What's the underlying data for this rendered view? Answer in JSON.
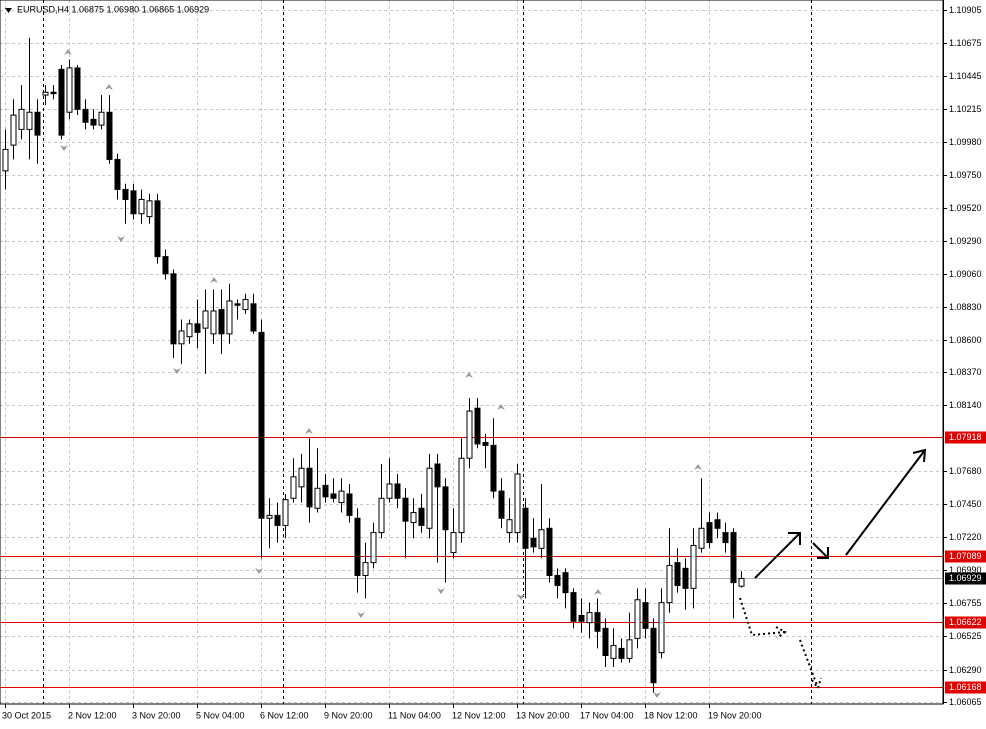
{
  "chart_data": {
    "type": "candlestick",
    "title": "EURUSD,H4  1.06875 1.06980 1.06865 1.06929",
    "categories": [
      "30 Oct 2015",
      null,
      null,
      null,
      null,
      null,
      null,
      null,
      "2 Nov 12:00",
      null,
      null,
      null,
      null,
      null,
      null,
      null,
      "3 Nov 20:00",
      null,
      null,
      null,
      null,
      null,
      null,
      null,
      "5 Nov 04:00",
      null,
      null,
      null,
      null,
      null,
      null,
      null,
      "6 Nov 12:00",
      null,
      null,
      null,
      null,
      null,
      null,
      null,
      "9 Nov 20:00",
      null,
      null,
      null,
      null,
      null,
      null,
      null,
      "11 Nov 04:00",
      null,
      null,
      null,
      null,
      null,
      null,
      null,
      "12 Nov 12:00",
      null,
      null,
      null,
      null,
      null,
      null,
      null,
      "13 Nov 20:00",
      null,
      null,
      null,
      null,
      null,
      null,
      null,
      "17 Nov 04:00",
      null,
      null,
      null,
      null,
      null,
      null,
      null,
      "18 Nov 12:00",
      null,
      null,
      null,
      null,
      null,
      null,
      null,
      "19 Nov 20:00",
      null,
      null,
      null,
      null
    ],
    "open": [
      1.0978,
      1.0996,
      1.1007,
      1.1007,
      1.1019,
      1.1031,
      1.1033,
      1.1049,
      1.1019,
      1.105,
      1.1021,
      1.1014,
      1.101,
      1.1019,
      1.0986,
      1.0965,
      1.0964,
      1.0948,
      1.0946,
      1.0957,
      1.0918,
      1.0906,
      1.0857,
      1.0862,
      1.0871,
      1.0868,
      1.0864,
      1.0881,
      1.0864,
      1.0885,
      1.0881,
      1.0885,
      1.0865,
      1.0735,
      1.0737,
      1.073,
      1.0749,
      1.0757,
      1.077,
      1.0742,
      1.0758,
      1.0752,
      1.0746,
      1.0752,
      1.0735,
      1.0695,
      1.0704,
      1.0725,
      1.0749,
      1.0759,
      1.0749,
      1.0732,
      1.0742,
      1.0728,
      1.0773,
      1.0757,
      1.0711,
      1.0725,
      1.0777,
      1.0812,
      1.0788,
      1.0786,
      1.0754,
      1.0725,
      1.0725,
      1.0742,
      1.0721,
      1.0714,
      1.0728,
      1.0695,
      1.0697,
      1.0683,
      1.0667,
      1.0662,
      1.0669,
      1.0658,
      1.0637,
      1.0644,
      1.0637,
      1.0651,
      1.0676,
      1.0658,
      1.0641,
      1.0676,
      1.0704,
      1.07,
      1.0686,
      1.0714,
      1.0732,
      1.0734,
      1.0725,
      1.0725,
      1.06875
    ],
    "high": [
      1.1007,
      1.1028,
      1.1038,
      1.1071,
      1.1028,
      1.1038,
      1.1038,
      1.1052,
      1.1056,
      1.1052,
      1.1028,
      1.1021,
      1.1031,
      1.1031,
      1.099,
      1.0969,
      1.0969,
      1.0965,
      1.0962,
      1.0962,
      1.0923,
      1.0909,
      1.0874,
      1.0874,
      1.0888,
      1.0895,
      1.0895,
      1.0895,
      1.0899,
      1.0888,
      1.0892,
      1.0892,
      1.0874,
      1.0749,
      1.0746,
      1.0752,
      1.0777,
      1.078,
      1.0791,
      1.0784,
      1.0766,
      1.0763,
      1.0763,
      1.0759,
      1.0742,
      1.0718,
      1.0732,
      1.0773,
      1.0777,
      1.0766,
      1.0756,
      1.0749,
      1.0752,
      1.078,
      1.078,
      1.0763,
      1.0742,
      1.0791,
      1.0819,
      1.0819,
      1.0794,
      1.0805,
      1.0763,
      1.0749,
      1.0773,
      1.0749,
      1.0735,
      1.0759,
      1.0735,
      1.07,
      1.07,
      1.0686,
      1.0679,
      1.0676,
      1.0679,
      1.0665,
      1.0658,
      1.0651,
      1.0669,
      1.0686,
      1.0686,
      1.0665,
      1.0686,
      1.0728,
      1.0714,
      1.0707,
      1.0728,
      1.0763,
      1.0739,
      1.0739,
      1.0732,
      1.0728,
      1.0698
    ],
    "low": [
      1.0965,
      1.0986,
      1.1,
      1.0986,
      1.0983,
      1.1024,
      1.1028,
      1.1,
      1.1014,
      1.1017,
      1.1007,
      1.1007,
      1.1007,
      1.0983,
      1.0958,
      1.0941,
      1.0944,
      1.0941,
      1.0941,
      1.0913,
      1.0902,
      1.0847,
      1.0843,
      1.0857,
      1.0854,
      1.0836,
      1.0857,
      1.085,
      1.0857,
      1.0874,
      1.0878,
      1.0864,
      1.0707,
      1.0714,
      1.0718,
      1.0721,
      1.0746,
      1.0746,
      1.0732,
      1.0739,
      1.0746,
      1.0746,
      1.0739,
      1.0732,
      1.0683,
      1.0679,
      1.07,
      1.0721,
      1.0746,
      1.0742,
      1.0707,
      1.0721,
      1.0725,
      1.0721,
      1.0704,
      1.069,
      1.0707,
      1.0718,
      1.077,
      1.0784,
      1.077,
      1.0749,
      1.0728,
      1.0718,
      1.0718,
      1.0679,
      1.0711,
      1.0707,
      1.069,
      1.0679,
      1.0672,
      1.0658,
      1.0655,
      1.0651,
      1.0644,
      1.0631,
      1.0631,
      1.0634,
      1.0634,
      1.0644,
      1.0651,
      1.0613,
      1.0637,
      1.0669,
      1.0683,
      1.0671,
      1.0672,
      1.0711,
      1.0714,
      1.0721,
      1.0711,
      1.0665,
      1.06865
    ],
    "close": [
      1.0993,
      1.1017,
      1.1021,
      1.1019,
      1.1003,
      1.1033,
      1.1032,
      1.1003,
      1.105,
      1.1021,
      1.1012,
      1.101,
      1.1019,
      1.0986,
      1.0965,
      1.0958,
      1.0948,
      1.0958,
      1.0957,
      1.0918,
      1.0906,
      1.0857,
      1.0866,
      1.0871,
      1.0865,
      1.088,
      1.088,
      1.0864,
      1.0887,
      1.0884,
      1.0888,
      1.0866,
      1.0735,
      1.0737,
      1.073,
      1.0748,
      1.0764,
      1.077,
      1.0743,
      1.0756,
      1.075,
      1.0749,
      1.0754,
      1.0737,
      1.0695,
      1.0704,
      1.0725,
      1.0749,
      1.0759,
      1.0749,
      1.0733,
      1.0739,
      1.073,
      1.077,
      1.0757,
      1.0727,
      1.0725,
      1.0777,
      1.081,
      1.0787,
      1.0786,
      1.0754,
      1.0735,
      1.0734,
      1.0766,
      1.0714,
      1.0715,
      1.0727,
      1.0695,
      1.0688,
      1.0683,
      1.0663,
      1.0663,
      1.0669,
      1.0656,
      1.0639,
      1.0646,
      1.0637,
      1.065,
      1.0678,
      1.0658,
      1.062,
      1.0676,
      1.0702,
      1.0688,
      1.0686,
      1.0716,
      1.0728,
      1.0718,
      1.0728,
      1.0718,
      1.069,
      1.06929
    ],
    "up_color": "#ffffff",
    "down_color": "#000000",
    "ylim": [
      1.06051,
      1.10975
    ],
    "yticks": [
      1.10905,
      1.10675,
      1.10445,
      1.10215,
      {
        "value": 1.0998,
        "label": "1.09980"
      },
      {
        "value": 1.0975,
        "label": "1.09750"
      },
      {
        "value": 1.0952,
        "label": "1.09520"
      },
      {
        "value": 1.0929,
        "label": "1.09290"
      },
      {
        "value": 1.0906,
        "label": "1.09060"
      },
      {
        "value": 1.0883,
        "label": "1.08830"
      },
      {
        "value": 1.086,
        "label": "1.08600"
      },
      {
        "value": 1.0837,
        "label": "1.08370"
      },
      {
        "value": 1.0814,
        "label": "1.08140"
      },
      {
        "value": 1.0768,
        "label": "1.07680"
      },
      {
        "value": 1.0745,
        "label": "1.07450"
      },
      {
        "value": 1.0722,
        "label": "1.07220"
      },
      {
        "value": 1.0699,
        "label": "1.06990"
      },
      1.06755,
      1.06525,
      {
        "value": 1.0629,
        "label": "1.06290"
      },
      1.06065
    ],
    "grid": true,
    "levels": [
      1.07918,
      1.07089,
      1.06622,
      1.06168
    ],
    "level_color": "#e00000",
    "last_price": 1.06929
  }
}
